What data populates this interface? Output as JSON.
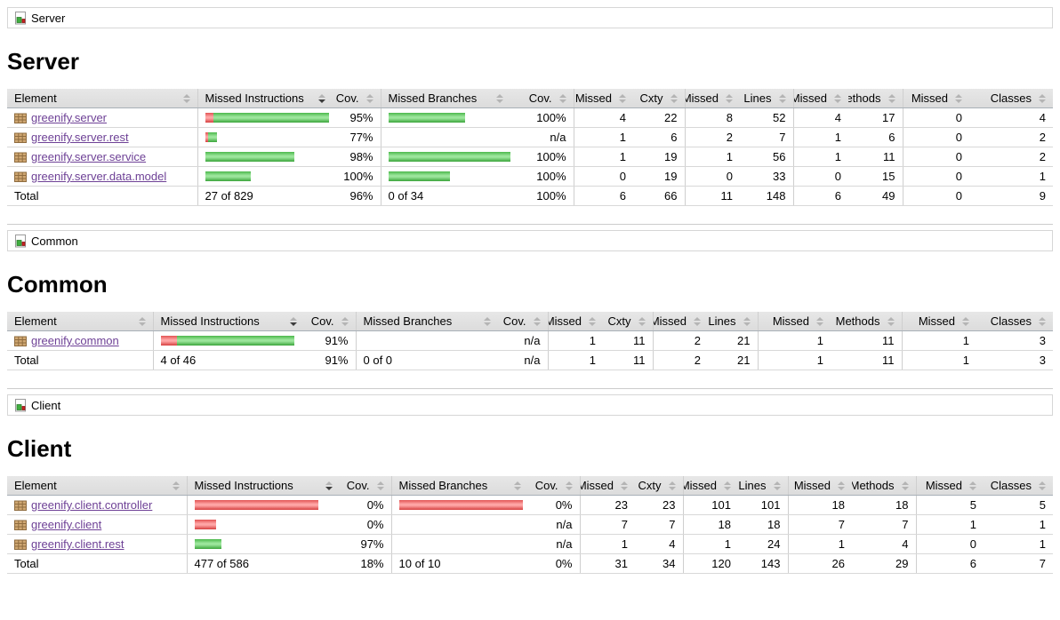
{
  "colors": {
    "link": "#6e4196",
    "bar_green": "#4cb84c",
    "bar_red": "#e25454",
    "header_bg": "#e0e0e0"
  },
  "columns": [
    "Element",
    "Missed Instructions",
    "Cov.",
    "Missed Branches",
    "Cov.",
    "Missed",
    "Cxty",
    "Missed",
    "Lines",
    "Missed",
    "Methods",
    "Missed",
    "Classes"
  ],
  "sort": {
    "column": "Missed Instructions",
    "direction": "desc"
  },
  "sections": [
    {
      "id": "server",
      "breadcrumb": "Server",
      "title": "Server",
      "rows": [
        {
          "element": "greenify.server",
          "instr_bar": [
            9,
            130
          ],
          "instr_cov": "95%",
          "branch_bar": [
            0,
            86
          ],
          "branch_cov": "100%",
          "metrics": [
            "4",
            "22",
            "8",
            "52",
            "4",
            "17",
            "0",
            "4"
          ]
        },
        {
          "element": "greenify.server.rest",
          "instr_bar": [
            3,
            10
          ],
          "instr_cov": "77%",
          "branch_bar": [
            0,
            0
          ],
          "branch_cov": "n/a",
          "metrics": [
            "1",
            "6",
            "2",
            "7",
            "1",
            "6",
            "0",
            "2"
          ]
        },
        {
          "element": "greenify.server.service",
          "instr_bar": [
            0,
            100
          ],
          "instr_cov": "98%",
          "branch_bar": [
            0,
            139
          ],
          "branch_cov": "100%",
          "metrics": [
            "1",
            "19",
            "1",
            "56",
            "1",
            "11",
            "0",
            "2"
          ]
        },
        {
          "element": "greenify.server.data.model",
          "instr_bar": [
            0,
            51
          ],
          "instr_cov": "100%",
          "branch_bar": [
            0,
            69
          ],
          "branch_cov": "100%",
          "metrics": [
            "0",
            "19",
            "0",
            "33",
            "0",
            "15",
            "0",
            "1"
          ]
        }
      ],
      "total": {
        "label": "Total",
        "instr": "27 of 829",
        "instr_cov": "96%",
        "branch": "0 of 34",
        "branch_cov": "100%",
        "metrics": [
          "6",
          "66",
          "11",
          "148",
          "6",
          "49",
          "0",
          "9"
        ]
      }
    },
    {
      "id": "common",
      "breadcrumb": "Common",
      "title": "Common",
      "rows": [
        {
          "element": "greenify.common",
          "instr_bar": [
            18,
            132
          ],
          "instr_cov": "91%",
          "branch_bar": [
            0,
            0
          ],
          "branch_cov": "n/a",
          "metrics": [
            "1",
            "11",
            "2",
            "21",
            "1",
            "11",
            "1",
            "3"
          ]
        }
      ],
      "total": {
        "label": "Total",
        "instr": "4 of 46",
        "instr_cov": "91%",
        "branch": "0 of 0",
        "branch_cov": "n/a",
        "metrics": [
          "1",
          "11",
          "2",
          "21",
          "1",
          "11",
          "1",
          "3"
        ]
      }
    },
    {
      "id": "client",
      "breadcrumb": "Client",
      "title": "Client",
      "rows": [
        {
          "element": "greenify.client.controller",
          "instr_bar": [
            139,
            0
          ],
          "instr_cov": "0%",
          "branch_bar": [
            139,
            0
          ],
          "branch_cov": "0%",
          "metrics": [
            "23",
            "23",
            "101",
            "101",
            "18",
            "18",
            "5",
            "5"
          ]
        },
        {
          "element": "greenify.client",
          "instr_bar": [
            24,
            0
          ],
          "instr_cov": "0%",
          "branch_bar": [
            0,
            0
          ],
          "branch_cov": "n/a",
          "metrics": [
            "7",
            "7",
            "18",
            "18",
            "7",
            "7",
            "1",
            "1"
          ]
        },
        {
          "element": "greenify.client.rest",
          "instr_bar": [
            0,
            30
          ],
          "instr_cov": "97%",
          "branch_bar": [
            0,
            0
          ],
          "branch_cov": "n/a",
          "metrics": [
            "1",
            "4",
            "1",
            "24",
            "1",
            "4",
            "0",
            "1"
          ]
        }
      ],
      "total": {
        "label": "Total",
        "instr": "477 of 586",
        "instr_cov": "18%",
        "branch": "10 of 10",
        "branch_cov": "0%",
        "metrics": [
          "31",
          "34",
          "120",
          "143",
          "26",
          "29",
          "6",
          "7"
        ]
      }
    }
  ]
}
